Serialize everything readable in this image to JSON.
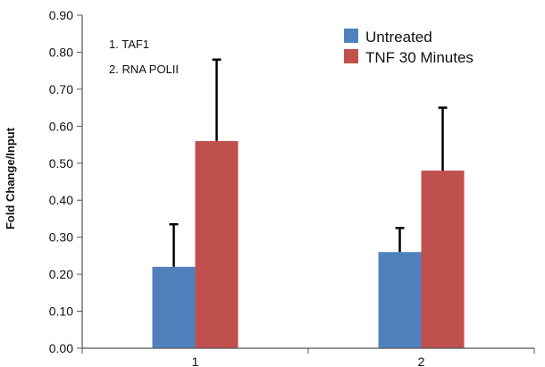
{
  "chart_data": {
    "type": "bar",
    "categories": [
      "1",
      "2"
    ],
    "series": [
      {
        "name": "Untreated",
        "values": [
          0.22,
          0.26
        ],
        "errors": [
          0.115,
          0.065
        ],
        "color": "#4F81BD"
      },
      {
        "name": "TNF 30 Minutes",
        "values": [
          0.56,
          0.48
        ],
        "errors": [
          0.22,
          0.17
        ],
        "color": "#C0504D"
      }
    ],
    "ylabel": "Fold Change/Input",
    "xlabel": "",
    "ylim": [
      0,
      0.9
    ],
    "yticks": [
      "0.00",
      "0.10",
      "0.20",
      "0.30",
      "0.40",
      "0.50",
      "0.60",
      "0.70",
      "0.80",
      "0.90"
    ],
    "annotations": [
      "1. TAF1",
      "2. RNA POLII"
    ],
    "legend_position": "top-right",
    "grid": false
  }
}
